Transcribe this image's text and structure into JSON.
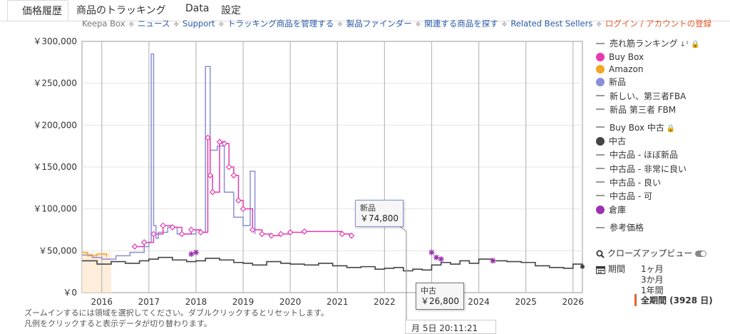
{
  "tabs": [
    {
      "label": "価格履歴",
      "active": true
    },
    {
      "label": "商品のトラッキング",
      "active": false
    },
    {
      "label": "Data",
      "active": false
    },
    {
      "label": "設定",
      "active": false
    }
  ],
  "nav": {
    "keepa_box": "Keepa Box",
    "news": "ニュース",
    "support": "Support",
    "manage": "トラッキング商品を管理する",
    "finder": "製品ファインダー",
    "related_search": "関連する商品を探す",
    "related_best": "Related Best Sellers",
    "login": "ログイン / アカウントの登録"
  },
  "legend": {
    "sales_rank": "売れ筋ランキング",
    "buy_box": "Buy Box",
    "amazon": "Amazon",
    "new": "新品",
    "new_fba": "新しい、第三者FBA",
    "new_fbm": "新品 第三者 FBM",
    "buybox_used": "Buy Box 中古",
    "used": "中古",
    "used_like_new": "中古品 - ほぼ新品",
    "used_very_good": "中古品 - 非常に良い",
    "used_good": "中古品 - 良い",
    "used_acceptable": "中古品 - 可",
    "warehouse": "倉庫",
    "list_price": "参考価格"
  },
  "controls": {
    "closeup": "クローズアップビュー",
    "period_label": "期間",
    "p1": "1ヶ月",
    "p3": "3か月",
    "p12": "1年間",
    "all": "全期間 (3928 日)"
  },
  "hints": {
    "line1": "ズームインするには領域を選択してください。ダブルクリックするとリセットします。",
    "line2": "凡例をクリックすると表示データが切り替わります。"
  },
  "tooltips": {
    "new_title": "新品",
    "new_value": "￥74,800",
    "used_title": "中古",
    "used_value": "￥26,800",
    "date": "月 5日 20:11:21"
  },
  "colors": {
    "buy_box": "#e53ab0",
    "amazon": "#f5a623",
    "new": "#8a8fd8",
    "used": "#444444",
    "warehouse": "#9b30b0",
    "grid": "#bbbbbb"
  },
  "chart_data": {
    "type": "line",
    "y_ticks": [
      "￥0",
      "￥50,000",
      "￥100,000",
      "￥150,000",
      "￥200,000",
      "￥250,000",
      "￥300,000"
    ],
    "x_ticks": [
      "2016",
      "2017",
      "2018",
      "2019",
      "2020",
      "2021",
      "2022",
      "2023",
      "2024",
      "2025",
      "2026"
    ],
    "ylim": [
      0,
      300000
    ],
    "xlim": [
      2015.58,
      2026.2
    ],
    "grid": true,
    "legend": "right",
    "series": [
      {
        "name": "中古",
        "color": "#444444",
        "x": [
          2015.58,
          2015.9,
          2016.2,
          2016.5,
          2016.8,
          2017.0,
          2017.2,
          2017.5,
          2017.8,
          2018.0,
          2018.2,
          2018.5,
          2018.8,
          2019.0,
          2019.2,
          2019.5,
          2019.8,
          2020.0,
          2020.3,
          2020.6,
          2020.9,
          2021.2,
          2021.5,
          2021.8,
          2022.0,
          2022.2,
          2022.4,
          2022.6,
          2022.8,
          2023.0,
          2023.2,
          2023.4,
          2023.6,
          2023.8,
          2024.0,
          2024.3,
          2024.6,
          2024.9,
          2025.2,
          2025.5,
          2025.8,
          2026.0,
          2026.2
        ],
        "values": [
          38000,
          34000,
          37000,
          35000,
          38000,
          40000,
          42000,
          39000,
          37000,
          38000,
          41000,
          39000,
          36000,
          35000,
          33000,
          37000,
          35000,
          34000,
          33000,
          35000,
          32000,
          30000,
          31000,
          28000,
          29000,
          30000,
          26000,
          28000,
          27000,
          33000,
          36000,
          34000,
          38000,
          35000,
          40000,
          38000,
          37000,
          36000,
          32000,
          30000,
          29000,
          34000,
          31000
        ]
      },
      {
        "name": "新品",
        "color": "#8a8fd8",
        "x": [
          2015.58,
          2015.8,
          2016.0,
          2016.3,
          2016.6,
          2016.9,
          2017.0,
          2017.05,
          2017.1,
          2017.15,
          2017.2,
          2017.4,
          2017.6,
          2018.0,
          2018.1,
          2018.2,
          2018.3,
          2018.45,
          2018.6,
          2018.8,
          2019.0,
          2019.15,
          2019.2,
          2019.25
        ],
        "values": [
          45000,
          42000,
          40000,
          44000,
          48000,
          55000,
          60000,
          285000,
          80000,
          65000,
          72000,
          78000,
          70000,
          75000,
          72000,
          270000,
          170000,
          175000,
          120000,
          90000,
          80000,
          145000,
          145000,
          70000
        ]
      },
      {
        "name": "Buy Box",
        "color": "#e53ab0",
        "x": [
          2016.7,
          2016.9,
          2017.1,
          2017.3,
          2017.5,
          2017.7,
          2017.9,
          2018.1,
          2018.25,
          2018.3,
          2018.35,
          2018.5,
          2018.6,
          2018.7,
          2018.8,
          2018.9,
          2019.0,
          2019.2,
          2019.4,
          2019.6,
          2019.8,
          2020.0,
          2020.3,
          2021.1,
          2021.3
        ],
        "values": [
          55000,
          60000,
          70000,
          80000,
          78000,
          70000,
          75000,
          72000,
          185000,
          140000,
          120000,
          180000,
          178000,
          150000,
          140000,
          110000,
          100000,
          75000,
          70000,
          68000,
          70000,
          72000,
          73000,
          70000,
          68000
        ]
      },
      {
        "name": "Amazon",
        "color": "#f5a623",
        "x": [
          2015.58,
          2015.7,
          2015.9,
          2016.1
        ],
        "values": [
          48000,
          44000,
          46000,
          43000
        ]
      },
      {
        "name": "倉庫",
        "color": "#9b30b0",
        "x": [
          2017.9,
          2018.0,
          2023.0,
          2023.1,
          2023.2,
          2024.3
        ],
        "values": [
          46000,
          48000,
          48000,
          42000,
          40000,
          38000
        ]
      }
    ]
  }
}
